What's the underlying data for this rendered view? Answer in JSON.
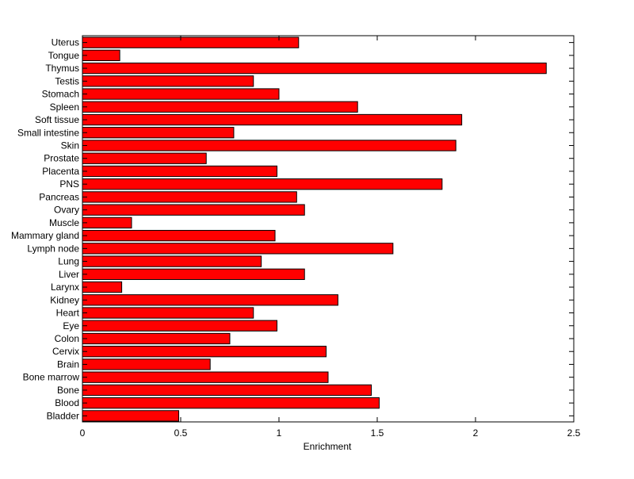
{
  "chart_data": {
    "type": "bar",
    "orientation": "horizontal",
    "title": "",
    "xlabel": "Enrichment",
    "ylabel": "",
    "xlim": [
      0,
      2.5
    ],
    "xticks": [
      "0",
      "0.5",
      "1",
      "1.5",
      "2",
      "2.5"
    ],
    "grid": false,
    "categories": [
      "Uterus",
      "Tongue",
      "Thymus",
      "Testis",
      "Stomach",
      "Spleen",
      "Soft tissue",
      "Small intestine",
      "Skin",
      "Prostate",
      "Placenta",
      "PNS",
      "Pancreas",
      "Ovary",
      "Muscle",
      "Mammary gland",
      "Lymph node",
      "Lung",
      "Liver",
      "Larynx",
      "Kidney",
      "Heart",
      "Eye",
      "Colon",
      "Cervix",
      "Brain",
      "Bone marrow",
      "Bone",
      "Blood",
      "Bladder"
    ],
    "values": [
      1.1,
      0.19,
      2.36,
      0.87,
      1.0,
      1.4,
      1.93,
      0.77,
      1.9,
      0.63,
      0.99,
      1.83,
      1.09,
      1.13,
      0.25,
      0.98,
      1.58,
      0.91,
      1.13,
      0.2,
      1.3,
      0.87,
      0.99,
      0.75,
      1.24,
      0.65,
      1.25,
      1.47,
      1.51,
      0.49
    ],
    "bar_color": "#ff0000",
    "edge_color": "#000000"
  }
}
